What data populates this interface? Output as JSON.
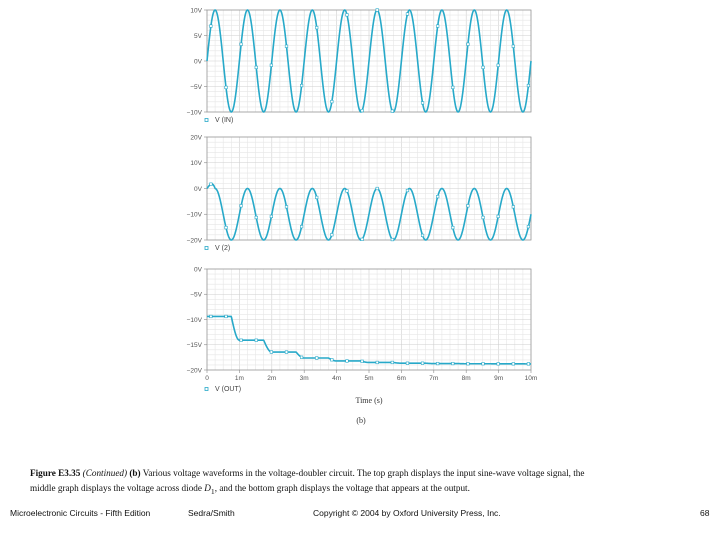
{
  "chart_data": [
    {
      "type": "line",
      "name": "top",
      "yticks": [
        "10V",
        "5V",
        "0V",
        "−5V",
        "−10V"
      ],
      "ylim": [
        -10,
        10
      ],
      "xlim": [
        0,
        10
      ],
      "series": [
        {
          "name": "V (IN)",
          "kind": "sine",
          "amplitude": 10,
          "offset": 0,
          "frequency_per_ms": 1,
          "phase": "sin"
        }
      ],
      "legend_marker_color": "#27a9c9",
      "line_color": "#27a9c9"
    },
    {
      "type": "line",
      "name": "middle",
      "yticks": [
        "20V",
        "10V",
        "0V",
        "−10V",
        "−20V"
      ],
      "ylim": [
        -20,
        20
      ],
      "xlim": [
        0,
        10
      ],
      "series": [
        {
          "name": "V (2)",
          "kind": "diode_voltage",
          "input_amplitude": 10,
          "frequency_per_ms": 1
        }
      ],
      "legend_marker_color": "#27a9c9",
      "line_color": "#27a9c9"
    },
    {
      "type": "line",
      "name": "bottom",
      "yticks": [
        "0V",
        "−5V",
        "−10V",
        "−15V",
        "−20V"
      ],
      "ylim": [
        -20,
        0
      ],
      "xlim": [
        0,
        10
      ],
      "xticks": [
        "0",
        "1m",
        "2m",
        "3m",
        "4m",
        "5m",
        "6m",
        "7m",
        "8m",
        "9m",
        "10m"
      ],
      "xlabel": "Time (s)",
      "series": [
        {
          "name": "V (OUT)",
          "kind": "doubler_output",
          "input_amplitude": 10,
          "frequency_per_ms": 1
        }
      ],
      "legend_marker_color": "#27a9c9",
      "line_color": "#27a9c9"
    }
  ],
  "sub_label": "(b)",
  "caption": {
    "figure_number": "Figure E3.35",
    "continued": "(Continued)",
    "part": "(b)",
    "text_1": " Various voltage waveforms in the voltage-doubler circuit. The top graph displays the input sine-wave voltage signal, the middle graph displays the voltage across diode ",
    "diode_symbol": "D",
    "diode_subscript": "1",
    "text_2": ", and the bottom graph displays the voltage that appears at the output."
  },
  "footer": {
    "book": "Microelectronic Circuits - Fifth Edition",
    "authors": "Sedra/Smith",
    "copyright": "Copyright © 2004 by Oxford University Press, Inc.",
    "page": "68"
  }
}
